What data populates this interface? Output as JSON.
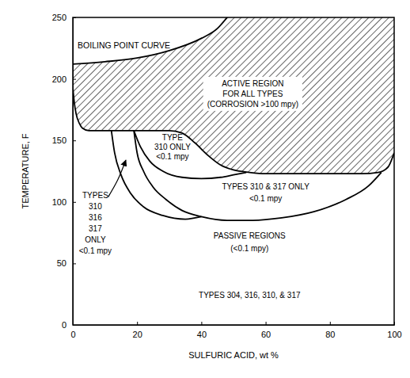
{
  "chart_data": {
    "type": "line",
    "xlabel": "SULFURIC ACID, wt %",
    "ylabel": "TEMPERATURE, F",
    "xlim": [
      0,
      100
    ],
    "ylim": [
      0,
      250
    ],
    "xticks": [
      0,
      20,
      40,
      60,
      80,
      100
    ],
    "yticks": [
      0,
      50,
      100,
      150,
      200,
      250
    ],
    "grid": false,
    "series": [
      {
        "name": "BOILING POINT CURVE",
        "type": "line",
        "color": "#000000",
        "x": [
          0,
          10,
          20,
          30,
          40,
          45,
          48
        ],
        "values": [
          212,
          214,
          217,
          223,
          233,
          241,
          250
        ]
      },
      {
        "type": "area",
        "color": "#000000",
        "x": [
          0,
          0.5,
          1,
          2,
          3,
          5,
          10,
          20,
          30,
          34,
          38,
          42,
          46,
          50,
          55,
          60,
          70,
          80,
          90,
          95,
          98,
          100
        ],
        "values": [
          193,
          180,
          172,
          164,
          160,
          158,
          158,
          158,
          158,
          156,
          148,
          138,
          130,
          126,
          124,
          123,
          123,
          123,
          123,
          124,
          128,
          140
        ]
      },
      {
        "type": "line",
        "color": "#000000",
        "x": [
          12,
          13,
          15,
          18,
          22,
          28,
          35,
          40
        ],
        "values": [
          158,
          140,
          122,
          107,
          96,
          89,
          86,
          88
        ]
      },
      {
        "type": "line",
        "color": "#000000",
        "x": [
          19,
          20,
          22,
          25,
          29,
          34,
          40,
          48,
          56,
          65,
          75,
          85,
          92,
          96
        ],
        "values": [
          158,
          140,
          125,
          112,
          102,
          93,
          88,
          85,
          85,
          87,
          92,
          102,
          113,
          124
        ]
      },
      {
        "type": "line",
        "color": "#000000",
        "x": [
          19,
          21,
          24,
          28,
          34,
          40,
          46,
          50,
          54
        ],
        "values": [
          158,
          145,
          133,
          125,
          120,
          119,
          120,
          122,
          124
        ]
      }
    ],
    "annotations": [
      {
        "text": [
          "ACTIVE REGION",
          "FOR ALL TYPES",
          "(CORROSION >100 mpy)"
        ]
      },
      {
        "text": [
          "TYPE",
          "310 ONLY",
          "<0.1 mpy"
        ]
      },
      {
        "text": [
          "TYPES",
          "310",
          "316",
          "317",
          "ONLY",
          "<0.1 mpy"
        ]
      },
      {
        "text": [
          "TYPES 310 & 317 ONLY",
          "<0.1 mpy"
        ]
      },
      {
        "text": [
          "PASSIVE REGIONS",
          "(<0.1 mpy)"
        ]
      },
      {
        "text": [
          "TYPES 304, 316, 310, & 317"
        ]
      }
    ]
  }
}
